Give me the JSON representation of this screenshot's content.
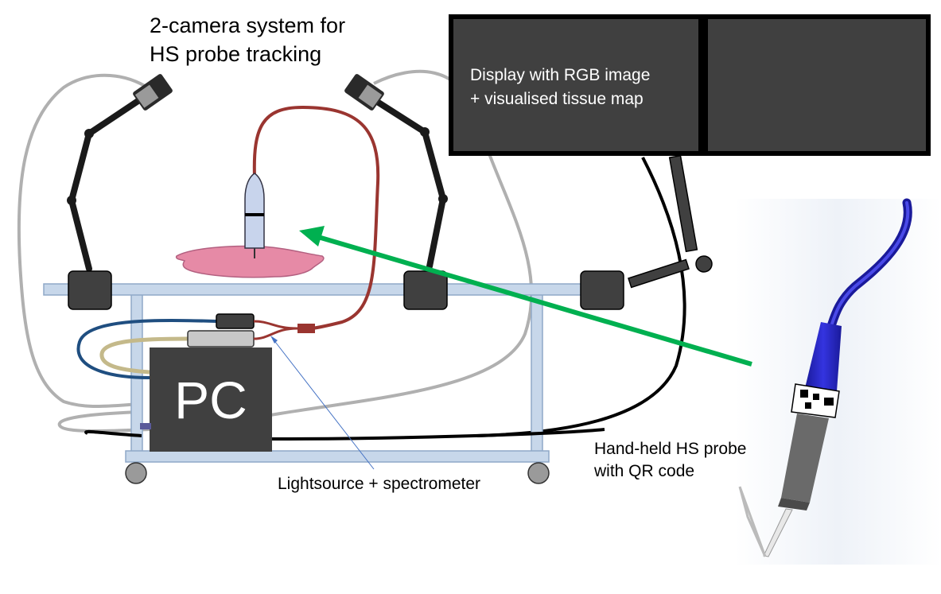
{
  "labels": {
    "camera_system": "2-camera system for\nHS probe tracking",
    "display": "Display with RGB image\n+ visualised tissue map",
    "pc": "PC",
    "lightsource": "Lightsource + spectrometer",
    "probe": "Hand-held HS probe\nwith QR code"
  },
  "colors": {
    "dark_panel": "#404040",
    "frame": "#c7d7ea",
    "frame_stroke": "#8fa9c8",
    "tissue": "#e68aa6",
    "fibre_red": "#9a3530",
    "cable_blue": "#1f4e80",
    "cable_tan": "#c4b98a",
    "cable_grey": "#b0b0b0",
    "arrow_green": "#00b050",
    "probe_blue": "#2424c8"
  }
}
